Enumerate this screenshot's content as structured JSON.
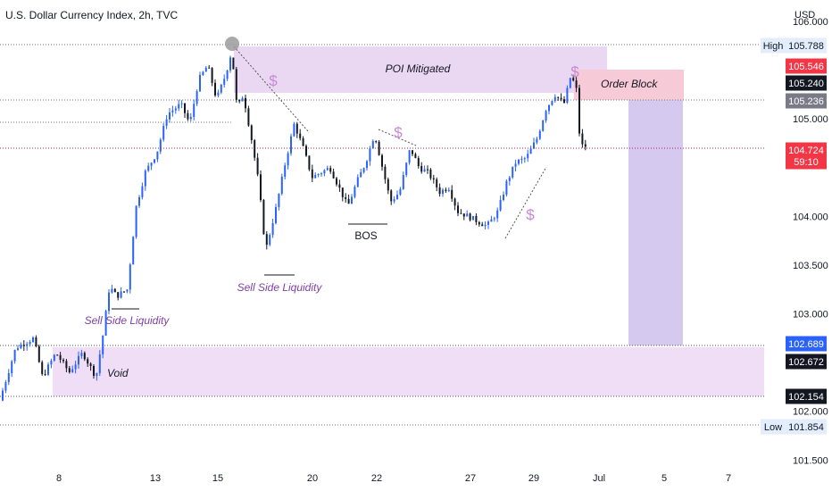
{
  "header": {
    "title": "U.S. Dollar Currency Index, 2h, TVC"
  },
  "chart_data": {
    "type": "candlestick",
    "currency": "USD",
    "y_axis": {
      "ylim": [
        101.3,
        106.15
      ],
      "ticks": [
        "101.500",
        "102.000",
        "103.000",
        "103.500",
        "104.000",
        "105.000",
        "106.000"
      ],
      "tick_values": [
        101.5,
        102.0,
        103.0,
        103.5,
        104.0,
        105.0,
        106.0
      ]
    },
    "x_axis": {
      "labels": [
        "8",
        "13",
        "15",
        "20",
        "22",
        "27",
        "29",
        "Jul",
        "5",
        "7"
      ]
    },
    "price_labels": [
      {
        "id": "high",
        "tag": "High",
        "value": "105.788",
        "style": "light"
      },
      {
        "id": "poi-top",
        "value": "105.546",
        "style": "red"
      },
      {
        "id": "ob-low",
        "value": "105.240",
        "style": "dark"
      },
      {
        "id": "ob-line",
        "value": "105.236",
        "style": "grey"
      },
      {
        "id": "last",
        "value": "104.724",
        "style": "red",
        "sub": "59:10"
      },
      {
        "id": "target",
        "value": "102.689",
        "style": "blue"
      },
      {
        "id": "void-top",
        "value": "102.672",
        "style": "dark"
      },
      {
        "id": "void-bottom",
        "value": "102.154",
        "style": "dark"
      },
      {
        "id": "low",
        "tag": "Low",
        "value": "101.854",
        "style": "light"
      }
    ],
    "annotations": {
      "poi": "POI Mitigated",
      "order_block": "Order Block",
      "bos": "BOS",
      "sell_side_1": "Sell Side Liquidity",
      "sell_side_2": "Sell Side Liquidity",
      "void": "Void",
      "dollar": "$"
    },
    "colors": {
      "up": "#2962ff",
      "down": "#131722",
      "zone": "#e7d6f0",
      "order_block": "#f6cbd8",
      "projection": "#d4c8ee",
      "accent_text": "#8e44ad"
    }
  }
}
